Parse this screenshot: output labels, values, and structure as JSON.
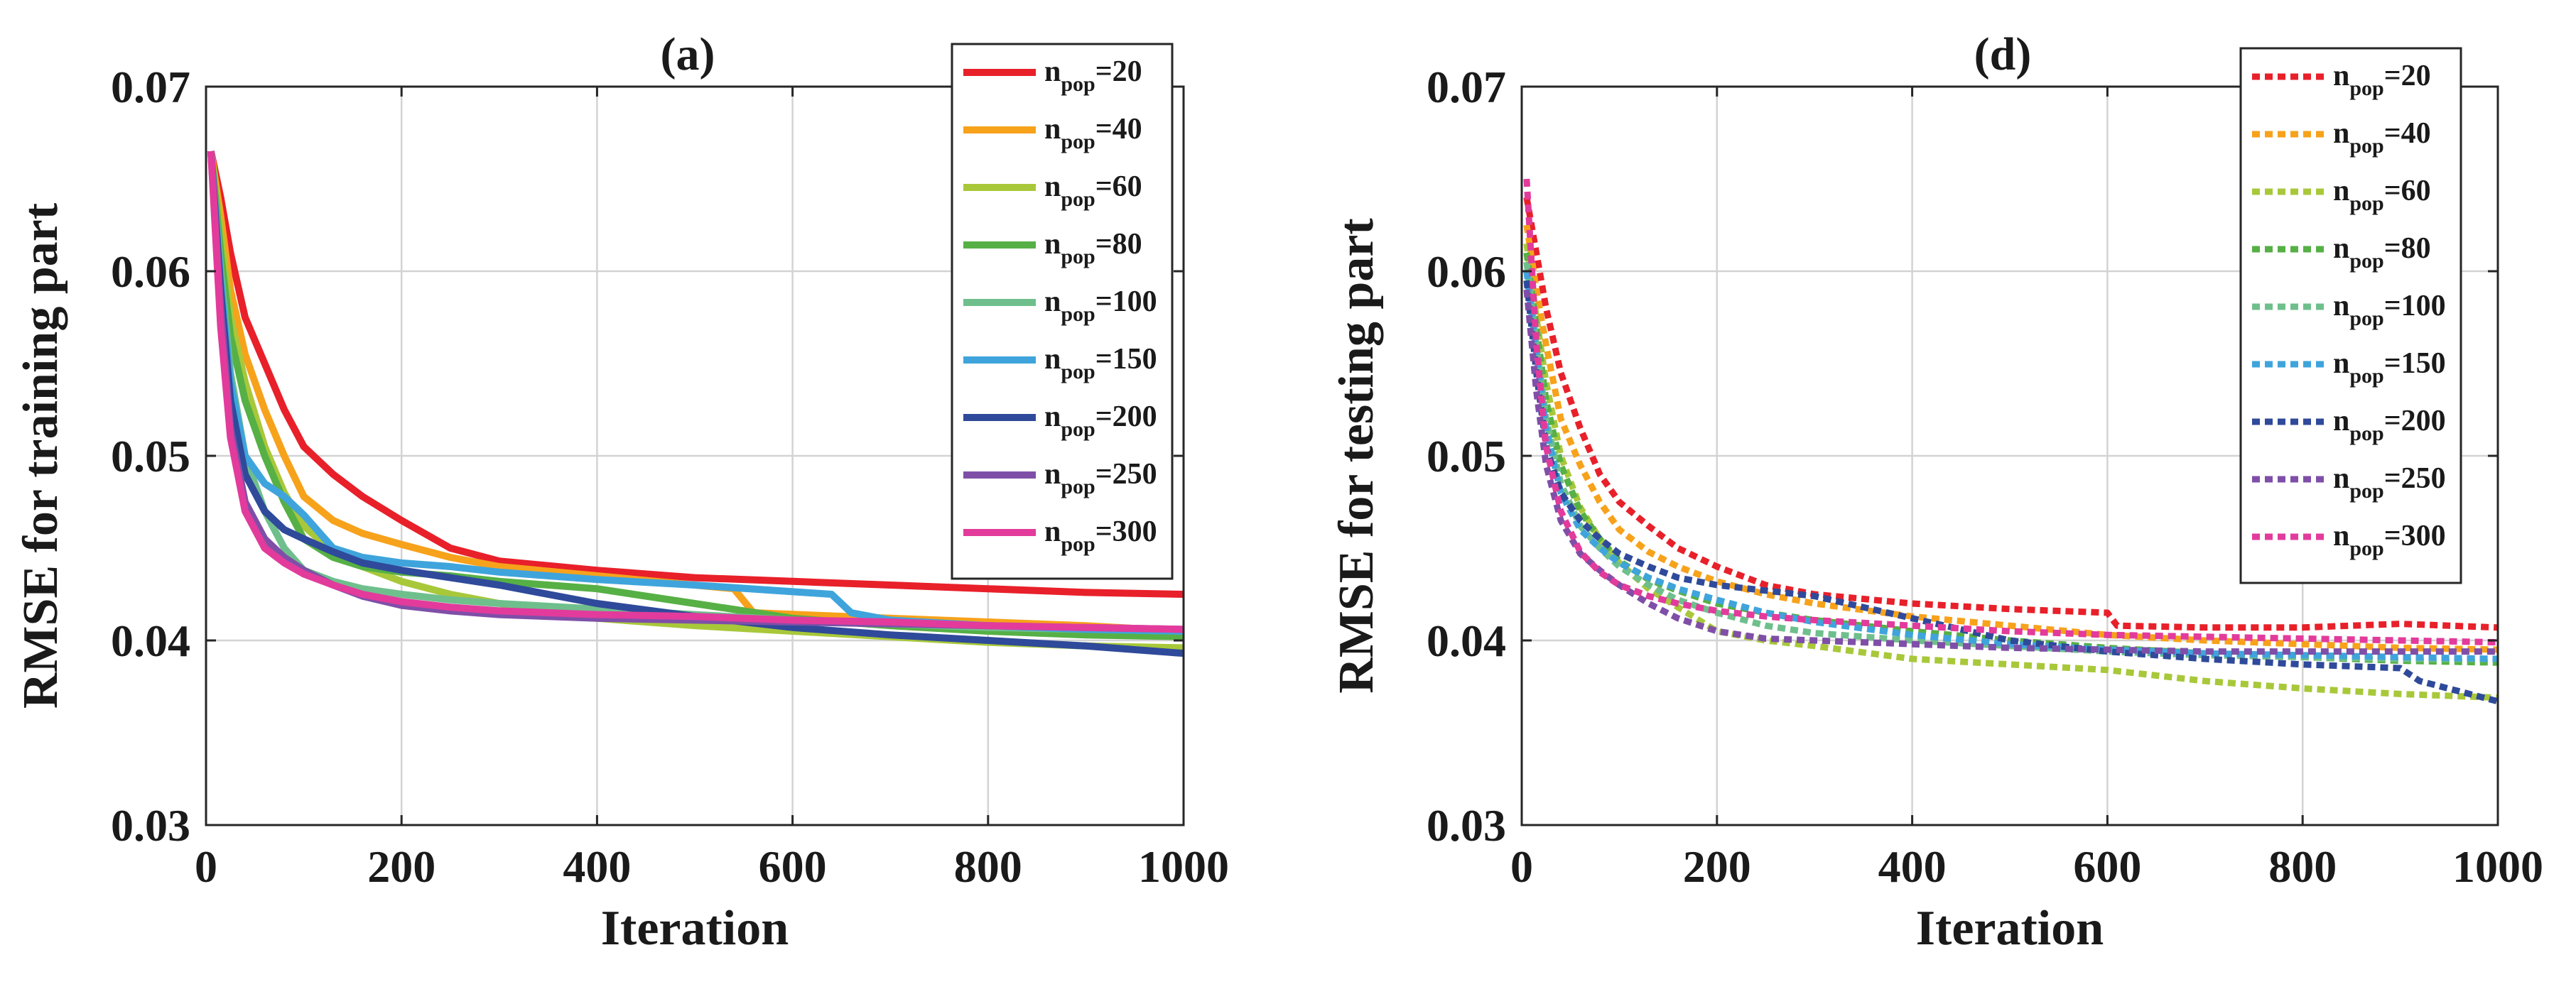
{
  "chart_data": [
    {
      "type": "line",
      "title": "(a)",
      "xlabel": "Iteration",
      "ylabel": "RMSE for training part",
      "xlim": [
        0,
        1000
      ],
      "ylim": [
        0.03,
        0.07
      ],
      "xticks": [
        0,
        200,
        400,
        600,
        800,
        1000
      ],
      "yticks": [
        0.03,
        0.04,
        0.05,
        0.06,
        0.07
      ],
      "xtick_labels": [
        "0",
        "200",
        "400",
        "600",
        "800",
        "1000"
      ],
      "ytick_labels": [
        "0.03",
        "0.04",
        "0.05",
        "0.06",
        "0.07"
      ],
      "grid": true,
      "line_style": "solid",
      "legend_position": "top-right",
      "series": [
        {
          "name": "npop=20",
          "legend_base": "n",
          "legend_sub": "pop",
          "legend_suffix": "=20",
          "color": "#e8202a",
          "x": [
            5,
            15,
            25,
            40,
            60,
            80,
            100,
            130,
            160,
            200,
            250,
            300,
            400,
            500,
            600,
            700,
            800,
            900,
            1000
          ],
          "y": [
            0.0665,
            0.064,
            0.061,
            0.0575,
            0.055,
            0.0525,
            0.0505,
            0.049,
            0.0478,
            0.0465,
            0.045,
            0.0443,
            0.0438,
            0.0434,
            0.0432,
            0.043,
            0.0428,
            0.0426,
            0.0425
          ]
        },
        {
          "name": "npop=40",
          "legend_base": "n",
          "legend_sub": "pop",
          "legend_suffix": "=40",
          "color": "#f7a21b",
          "x": [
            5,
            15,
            25,
            40,
            60,
            80,
            100,
            130,
            160,
            200,
            250,
            300,
            400,
            540,
            560,
            700,
            800,
            900,
            1000
          ],
          "y": [
            0.0665,
            0.063,
            0.059,
            0.0555,
            0.0525,
            0.05,
            0.0478,
            0.0465,
            0.0458,
            0.0452,
            0.0445,
            0.044,
            0.0435,
            0.0428,
            0.0415,
            0.0412,
            0.041,
            0.0408,
            0.0405
          ]
        },
        {
          "name": "npop=60",
          "legend_base": "n",
          "legend_sub": "pop",
          "legend_suffix": "=60",
          "color": "#a8c83a",
          "x": [
            5,
            15,
            25,
            40,
            60,
            80,
            100,
            130,
            160,
            200,
            250,
            300,
            400,
            500,
            600,
            700,
            800,
            900,
            1000
          ],
          "y": [
            0.0665,
            0.062,
            0.0575,
            0.054,
            0.0505,
            0.048,
            0.0462,
            0.0448,
            0.044,
            0.0432,
            0.0425,
            0.042,
            0.0412,
            0.0408,
            0.0405,
            0.0402,
            0.0399,
            0.0397,
            0.0396
          ]
        },
        {
          "name": "npop=80",
          "legend_base": "n",
          "legend_sub": "pop",
          "legend_suffix": "=80",
          "color": "#56b045",
          "x": [
            5,
            15,
            25,
            40,
            60,
            80,
            100,
            130,
            160,
            200,
            250,
            300,
            400,
            500,
            600,
            700,
            800,
            900,
            1000
          ],
          "y": [
            0.0665,
            0.061,
            0.0565,
            0.053,
            0.05,
            0.0475,
            0.0455,
            0.0445,
            0.044,
            0.0437,
            0.0435,
            0.0432,
            0.0428,
            0.042,
            0.0412,
            0.0408,
            0.0405,
            0.0403,
            0.0402
          ]
        },
        {
          "name": "npop=100",
          "legend_base": "n",
          "legend_sub": "pop",
          "legend_suffix": "=100",
          "color": "#6fbf8c",
          "x": [
            5,
            15,
            25,
            40,
            60,
            80,
            100,
            130,
            160,
            200,
            250,
            300,
            400,
            500,
            600,
            700,
            800,
            900,
            1000
          ],
          "y": [
            0.0665,
            0.06,
            0.0545,
            0.05,
            0.047,
            0.045,
            0.0438,
            0.0432,
            0.0428,
            0.0425,
            0.0422,
            0.042,
            0.0417,
            0.0414,
            0.0411,
            0.0409,
            0.0407,
            0.0406,
            0.0405
          ]
        },
        {
          "name": "npop=150",
          "legend_base": "n",
          "legend_sub": "pop",
          "legend_suffix": "=150",
          "color": "#3fa4dc",
          "x": [
            5,
            15,
            25,
            40,
            60,
            80,
            100,
            130,
            160,
            200,
            250,
            300,
            400,
            500,
            640,
            660,
            700,
            800,
            900,
            1000
          ],
          "y": [
            0.0665,
            0.0595,
            0.054,
            0.05,
            0.0485,
            0.0478,
            0.0468,
            0.045,
            0.0445,
            0.0442,
            0.044,
            0.0437,
            0.0433,
            0.043,
            0.0425,
            0.0415,
            0.0411,
            0.0408,
            0.0406,
            0.0405
          ]
        },
        {
          "name": "npop=200",
          "legend_base": "n",
          "legend_sub": "pop",
          "legend_suffix": "=200",
          "color": "#2f4a9a",
          "x": [
            5,
            15,
            25,
            40,
            60,
            80,
            100,
            130,
            160,
            200,
            250,
            300,
            400,
            500,
            600,
            700,
            800,
            900,
            1000
          ],
          "y": [
            0.0665,
            0.059,
            0.053,
            0.049,
            0.047,
            0.046,
            0.0455,
            0.0448,
            0.0442,
            0.0438,
            0.0434,
            0.043,
            0.042,
            0.0413,
            0.0407,
            0.0403,
            0.04,
            0.0397,
            0.0393
          ]
        },
        {
          "name": "npop=250",
          "legend_base": "n",
          "legend_sub": "pop",
          "legend_suffix": "=250",
          "color": "#7f4fa8",
          "x": [
            5,
            15,
            25,
            40,
            60,
            80,
            100,
            130,
            160,
            200,
            250,
            300,
            400,
            500,
            600,
            700,
            800,
            900,
            1000
          ],
          "y": [
            0.0665,
            0.058,
            0.0515,
            0.0475,
            0.0455,
            0.0445,
            0.0438,
            0.043,
            0.0424,
            0.0419,
            0.0416,
            0.0414,
            0.0412,
            0.0411,
            0.041,
            0.0409,
            0.0408,
            0.0407,
            0.0406
          ]
        },
        {
          "name": "npop=300",
          "legend_base": "n",
          "legend_sub": "pop",
          "legend_suffix": "=300",
          "color": "#e23b9c",
          "x": [
            5,
            15,
            25,
            40,
            60,
            80,
            100,
            130,
            160,
            200,
            250,
            300,
            400,
            500,
            600,
            700,
            800,
            900,
            1000
          ],
          "y": [
            0.0665,
            0.057,
            0.051,
            0.047,
            0.045,
            0.0442,
            0.0436,
            0.043,
            0.0425,
            0.0421,
            0.0418,
            0.0416,
            0.0414,
            0.0413,
            0.0411,
            0.041,
            0.0408,
            0.0407,
            0.0406
          ]
        }
      ]
    },
    {
      "type": "line",
      "title": "(d)",
      "xlabel": "Iteration",
      "ylabel": "RMSE for testing part",
      "xlim": [
        0,
        1000
      ],
      "ylim": [
        0.03,
        0.07
      ],
      "xticks": [
        0,
        200,
        400,
        600,
        800,
        1000
      ],
      "yticks": [
        0.03,
        0.04,
        0.05,
        0.06,
        0.07
      ],
      "xtick_labels": [
        "0",
        "200",
        "400",
        "600",
        "800",
        "1000"
      ],
      "ytick_labels": [
        "0.03",
        "0.04",
        "0.05",
        "0.06",
        "0.07"
      ],
      "grid": true,
      "line_style": "dotted",
      "legend_position": "top-right",
      "series": [
        {
          "name": "npop=20",
          "legend_base": "n",
          "legend_sub": "pop",
          "legend_suffix": "=20",
          "color": "#e8202a",
          "x": [
            5,
            15,
            25,
            40,
            60,
            80,
            100,
            130,
            160,
            200,
            250,
            300,
            400,
            500,
            600,
            610,
            700,
            800,
            900,
            1000
          ],
          "y": [
            0.064,
            0.061,
            0.058,
            0.0545,
            0.0515,
            0.049,
            0.0475,
            0.0462,
            0.045,
            0.044,
            0.043,
            0.0425,
            0.042,
            0.0417,
            0.0415,
            0.0408,
            0.0407,
            0.0407,
            0.0409,
            0.0407
          ]
        },
        {
          "name": "npop=40",
          "legend_base": "n",
          "legend_sub": "pop",
          "legend_suffix": "=40",
          "color": "#f7a21b",
          "x": [
            5,
            15,
            25,
            40,
            60,
            80,
            100,
            130,
            160,
            200,
            250,
            300,
            400,
            500,
            600,
            700,
            800,
            900,
            1000
          ],
          "y": [
            0.0625,
            0.059,
            0.056,
            0.052,
            0.0495,
            0.0475,
            0.046,
            0.0448,
            0.044,
            0.0432,
            0.0425,
            0.042,
            0.0413,
            0.0408,
            0.0403,
            0.04,
            0.0398,
            0.0396,
            0.0395
          ]
        },
        {
          "name": "npop=60",
          "legend_base": "n",
          "legend_sub": "pop",
          "legend_suffix": "=60",
          "color": "#a8c83a",
          "x": [
            5,
            15,
            25,
            40,
            60,
            80,
            100,
            130,
            160,
            200,
            250,
            300,
            400,
            500,
            600,
            700,
            800,
            900,
            1000
          ],
          "y": [
            0.0615,
            0.0575,
            0.054,
            0.05,
            0.0472,
            0.0455,
            0.0442,
            0.0428,
            0.0418,
            0.0405,
            0.04,
            0.0397,
            0.039,
            0.0387,
            0.0384,
            0.0378,
            0.0374,
            0.0371,
            0.0369
          ]
        },
        {
          "name": "npop=80",
          "legend_base": "n",
          "legend_sub": "pop",
          "legend_suffix": "=80",
          "color": "#56b045",
          "x": [
            5,
            15,
            25,
            40,
            60,
            80,
            100,
            130,
            160,
            200,
            250,
            300,
            400,
            500,
            600,
            700,
            800,
            900,
            1000
          ],
          "y": [
            0.061,
            0.057,
            0.053,
            0.0495,
            0.047,
            0.0455,
            0.0443,
            0.0433,
            0.0427,
            0.042,
            0.0415,
            0.0411,
            0.0405,
            0.04,
            0.0396,
            0.0393,
            0.0391,
            0.0389,
            0.0388
          ]
        },
        {
          "name": "npop=100",
          "legend_base": "n",
          "legend_sub": "pop",
          "legend_suffix": "=100",
          "color": "#6fbf8c",
          "x": [
            5,
            15,
            25,
            40,
            60,
            80,
            100,
            130,
            160,
            200,
            250,
            300,
            400,
            500,
            600,
            700,
            800,
            900,
            1000
          ],
          "y": [
            0.0605,
            0.056,
            0.052,
            0.0485,
            0.0462,
            0.045,
            0.044,
            0.043,
            0.0422,
            0.0415,
            0.0408,
            0.0404,
            0.04,
            0.0397,
            0.0394,
            0.0392,
            0.0391,
            0.039,
            0.039
          ]
        },
        {
          "name": "npop=150",
          "legend_base": "n",
          "legend_sub": "pop",
          "legend_suffix": "=150",
          "color": "#3fa4dc",
          "x": [
            5,
            15,
            25,
            40,
            60,
            80,
            100,
            130,
            160,
            200,
            250,
            300,
            400,
            500,
            600,
            700,
            800,
            900,
            1000
          ],
          "y": [
            0.06,
            0.0555,
            0.0515,
            0.048,
            0.046,
            0.045,
            0.0442,
            0.0434,
            0.0428,
            0.0422,
            0.0415,
            0.041,
            0.0403,
            0.0398,
            0.0395,
            0.0393,
            0.0392,
            0.0391,
            0.039
          ]
        },
        {
          "name": "npop=200",
          "legend_base": "n",
          "legend_sub": "pop",
          "legend_suffix": "=200",
          "color": "#2f4a9a",
          "x": [
            5,
            15,
            25,
            40,
            60,
            80,
            100,
            130,
            160,
            200,
            250,
            300,
            400,
            500,
            600,
            700,
            800,
            900,
            920,
            1000
          ],
          "y": [
            0.0595,
            0.0545,
            0.0505,
            0.048,
            0.0465,
            0.0455,
            0.0447,
            0.044,
            0.0434,
            0.043,
            0.0427,
            0.0424,
            0.0412,
            0.04,
            0.0394,
            0.039,
            0.0387,
            0.0385,
            0.0378,
            0.0367
          ]
        },
        {
          "name": "npop=250",
          "legend_base": "n",
          "legend_sub": "pop",
          "legend_suffix": "=250",
          "color": "#7f4fa8",
          "x": [
            5,
            15,
            25,
            40,
            60,
            80,
            100,
            130,
            160,
            200,
            250,
            300,
            400,
            500,
            600,
            700,
            800,
            900,
            1000
          ],
          "y": [
            0.059,
            0.0535,
            0.0495,
            0.0465,
            0.0447,
            0.0438,
            0.043,
            0.042,
            0.0412,
            0.0405,
            0.0401,
            0.04,
            0.0398,
            0.0396,
            0.0395,
            0.0394,
            0.0394,
            0.0394,
            0.0394
          ]
        },
        {
          "name": "npop=300",
          "legend_base": "n",
          "legend_sub": "pop",
          "legend_suffix": "=300",
          "color": "#e23b9c",
          "x": [
            5,
            15,
            25,
            40,
            60,
            80,
            100,
            130,
            160,
            200,
            250,
            300,
            400,
            500,
            600,
            700,
            800,
            900,
            1000
          ],
          "y": [
            0.065,
            0.056,
            0.0505,
            0.047,
            0.0448,
            0.0437,
            0.043,
            0.0424,
            0.042,
            0.0416,
            0.0413,
            0.0411,
            0.0408,
            0.0405,
            0.0403,
            0.0402,
            0.0401,
            0.04,
            0.0399
          ]
        }
      ]
    }
  ]
}
